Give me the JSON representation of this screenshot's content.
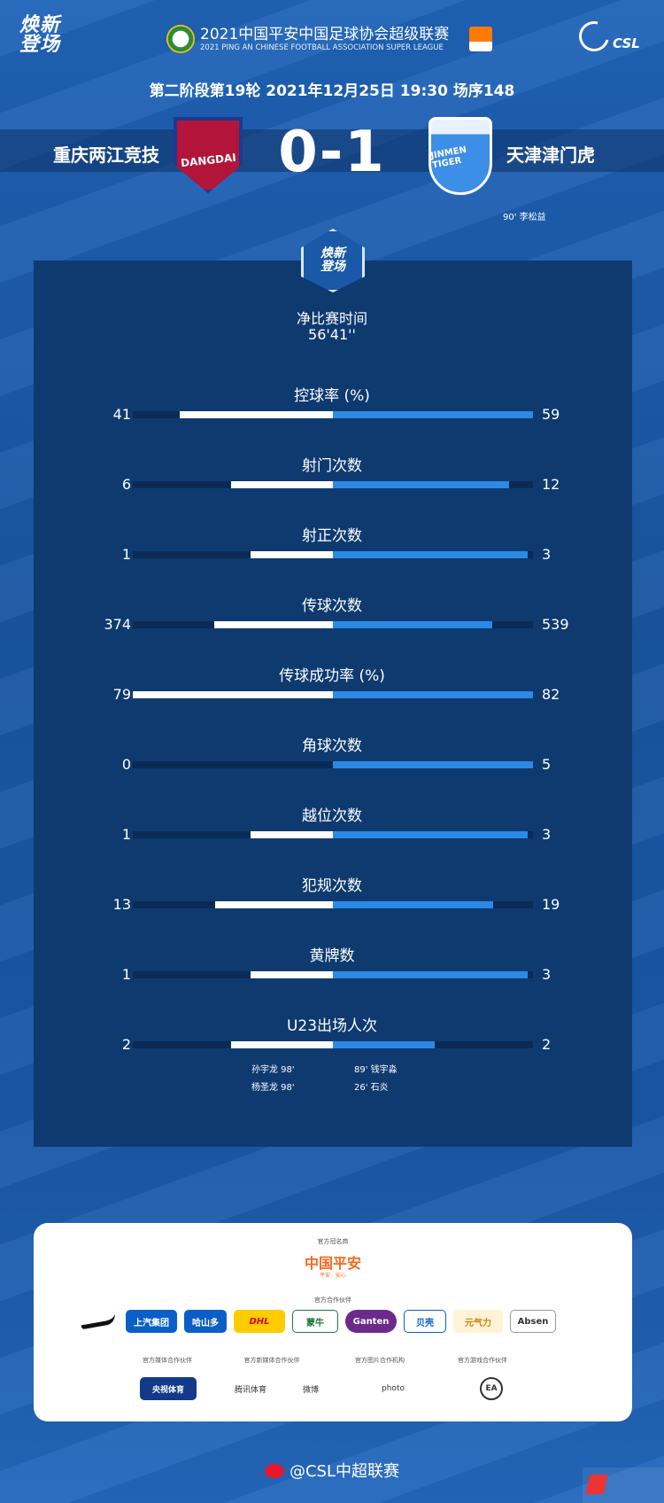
{
  "header": {
    "logo_left": "焕新\n登场",
    "title": "2021中国平安中国足球协会超级联赛",
    "subtitle": "2021 PING AN CHINESE FOOTBALL ASSOCIATION SUPER LEAGUE",
    "csl_text": "CSL"
  },
  "match_info": "第二阶段第19轮  2021年12月25日 19:30 场序148",
  "home": {
    "name": "重庆两江竞技",
    "crest_text": "DANGDAI",
    "score": 0
  },
  "away": {
    "name": "天津津门虎",
    "crest_text": "JINMEN TIGER",
    "score": 1
  },
  "score_display": "0-1",
  "goal_note": "90'  李松益",
  "panel_badge": "焕新\n登场",
  "net_time": {
    "label": "净比赛时间",
    "value": "56'41''"
  },
  "stats": [
    {
      "label": "控球率 (%)",
      "home": "41",
      "away": "59",
      "home_val": 41,
      "away_val": 59
    },
    {
      "label": "射门次数",
      "home": "6",
      "away": "12",
      "home_val": 6,
      "away_val": 12
    },
    {
      "label": "射正次数",
      "home": "1",
      "away": "3",
      "home_val": 1,
      "away_val": 3
    },
    {
      "label": "传球次数",
      "home": "374",
      "away": "539",
      "home_val": 374,
      "away_val": 539
    },
    {
      "label": "传球成功率 (%)",
      "home": "79",
      "away": "82",
      "home_val": 79,
      "away_val": 82
    },
    {
      "label": "角球次数",
      "home": "0",
      "away": "5",
      "home_val": 0,
      "away_val": 5
    },
    {
      "label": "越位次数",
      "home": "1",
      "away": "3",
      "home_val": 1,
      "away_val": 3
    },
    {
      "label": "犯规次数",
      "home": "13",
      "away": "19",
      "home_val": 13,
      "away_val": 19
    },
    {
      "label": "黄牌数",
      "home": "1",
      "away": "3",
      "home_val": 1,
      "away_val": 3
    },
    {
      "label": "U23出场人次",
      "home": "2",
      "away": "2",
      "home_val": 2,
      "away_val": 2
    }
  ],
  "u23": {
    "home": [
      "孙宇龙  98'",
      "杨圣龙  98'"
    ],
    "away": [
      "89'  钱宇淼",
      "26'  石炎"
    ]
  },
  "sponsors": {
    "title_main": "官方冠名商",
    "main": "中国平安",
    "main_sub": "平安 · 安心",
    "title_partners": "官方合作伙伴",
    "partners": [
      "上汽集团",
      "哈山多",
      "DHL",
      "蒙牛",
      "Ganten",
      "贝壳",
      "元气力",
      "Absen"
    ],
    "col_titles": [
      "官方媒体合作伙伴",
      "官方新媒体合作伙伴",
      "官方图片合作机构",
      "官方游戏合作伙伴"
    ],
    "col_logos": [
      "央视体育",
      "腾讯体育",
      "微博",
      "photo",
      "EA"
    ]
  },
  "footer": "@CSL中超联赛",
  "colors": {
    "home_bar": "#ffffff",
    "away_bar": "#2a8ae6",
    "background": "#1b5aa8",
    "panel": "#0e3a70"
  }
}
